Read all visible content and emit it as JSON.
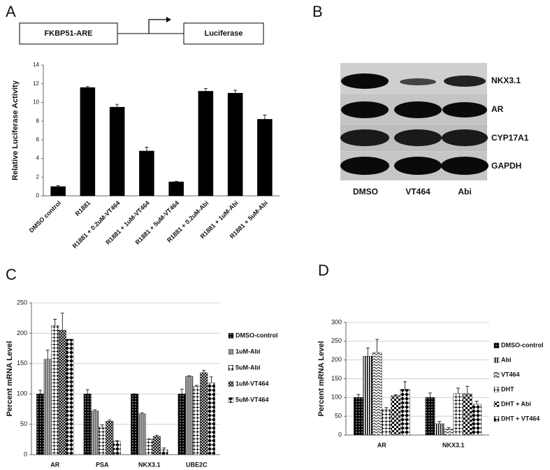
{
  "construct": {
    "left": "FKBP51-ARE",
    "right": "Luciferase"
  },
  "blot": {
    "panel": "B",
    "proteins": [
      "NKX3.1",
      "AR",
      "CYP17A1",
      "GAPDH"
    ],
    "lanes": [
      "DMSO",
      "VT464",
      "Abi"
    ]
  },
  "chart_data": [
    {
      "type": "bar",
      "panel": "A",
      "y_label": "Relative Luciferase Activity",
      "categories": [
        "DMSO control",
        "R1881",
        "R1881 + 0.2uM-VT464",
        "R1881 + 1uM-VT464",
        "R1881 + 5uM-VT464",
        "R1881 + 0.2uM-Abi",
        "R1881 + 1uM-Abi",
        "R1881 + 5uM-Abi"
      ],
      "values": [
        1.0,
        11.6,
        9.5,
        4.8,
        1.5,
        11.2,
        11.0,
        8.2
      ],
      "errors": [
        0.1,
        0.1,
        0.3,
        0.4,
        0.05,
        0.3,
        0.3,
        0.45
      ],
      "color": "#000000",
      "ylim": [
        0,
        14
      ],
      "yticks": [
        0,
        2,
        4,
        6,
        8,
        10,
        12,
        14
      ],
      "grid": false
    },
    {
      "type": "bar",
      "panel": "C",
      "y_label": "Percent mRNA Level",
      "categories": [
        "AR",
        "PSA",
        "NKX3.1",
        "UBE2C"
      ],
      "series": [
        {
          "name": "DMSO-control",
          "color": "#000000",
          "pattern": "dots",
          "values": [
            100,
            100,
            100,
            100
          ],
          "errors": [
            6,
            7,
            0,
            8
          ]
        },
        {
          "name": "1uM-Abi",
          "color": "#000000",
          "pattern": "gray",
          "values": [
            157,
            72,
            67,
            129
          ],
          "errors": [
            15,
            2,
            2,
            1
          ]
        },
        {
          "name": "5uM-Abi",
          "color": "#000000",
          "pattern": "plus",
          "values": [
            213,
            45,
            25,
            112
          ],
          "errors": [
            10,
            4,
            1,
            2
          ]
        },
        {
          "name": "1uM-VT464",
          "color": "#000000",
          "pattern": "cross",
          "values": [
            205,
            55,
            30,
            135
          ],
          "errors": [
            28,
            2,
            2,
            4
          ]
        },
        {
          "name": "5uM-VT464",
          "color": "#000000",
          "pattern": "zigzag",
          "values": [
            190,
            22,
            8,
            118
          ],
          "errors": [
            0,
            1,
            3,
            10
          ]
        }
      ],
      "ylim": [
        0,
        250
      ],
      "yticks": [
        0,
        50,
        100,
        150,
        200,
        250
      ],
      "grid": true,
      "legend": "right"
    },
    {
      "type": "bar",
      "panel": "D",
      "y_label": "Percent mRNA Level",
      "categories": [
        "AR",
        "NKX3.1"
      ],
      "series": [
        {
          "name": "DMSO-control",
          "color": "#000000",
          "pattern": "dots",
          "values": [
            100,
            100
          ],
          "errors": [
            8,
            12
          ]
        },
        {
          "name": "Abi",
          "color": "#000000",
          "pattern": "vlines",
          "values": [
            210,
            30
          ],
          "errors": [
            22,
            6
          ]
        },
        {
          "name": "VT464",
          "color": "#000000",
          "pattern": "waves",
          "values": [
            220,
            16
          ],
          "errors": [
            35,
            4
          ]
        },
        {
          "name": "DHT",
          "color": "#000000",
          "pattern": "plus",
          "values": [
            68,
            110
          ],
          "errors": [
            5,
            15
          ]
        },
        {
          "name": "DHT + Abi",
          "color": "#000000",
          "pattern": "checker",
          "values": [
            105,
            110
          ],
          "errors": [
            2,
            20
          ]
        },
        {
          "name": "DHT + VT464",
          "color": "#000000",
          "pattern": "zigzag",
          "values": [
            122,
            82
          ],
          "errors": [
            20,
            8
          ]
        }
      ],
      "ylim": [
        0,
        300
      ],
      "yticks": [
        0,
        50,
        100,
        150,
        200,
        250,
        300
      ],
      "grid": true,
      "legend": "right"
    }
  ]
}
